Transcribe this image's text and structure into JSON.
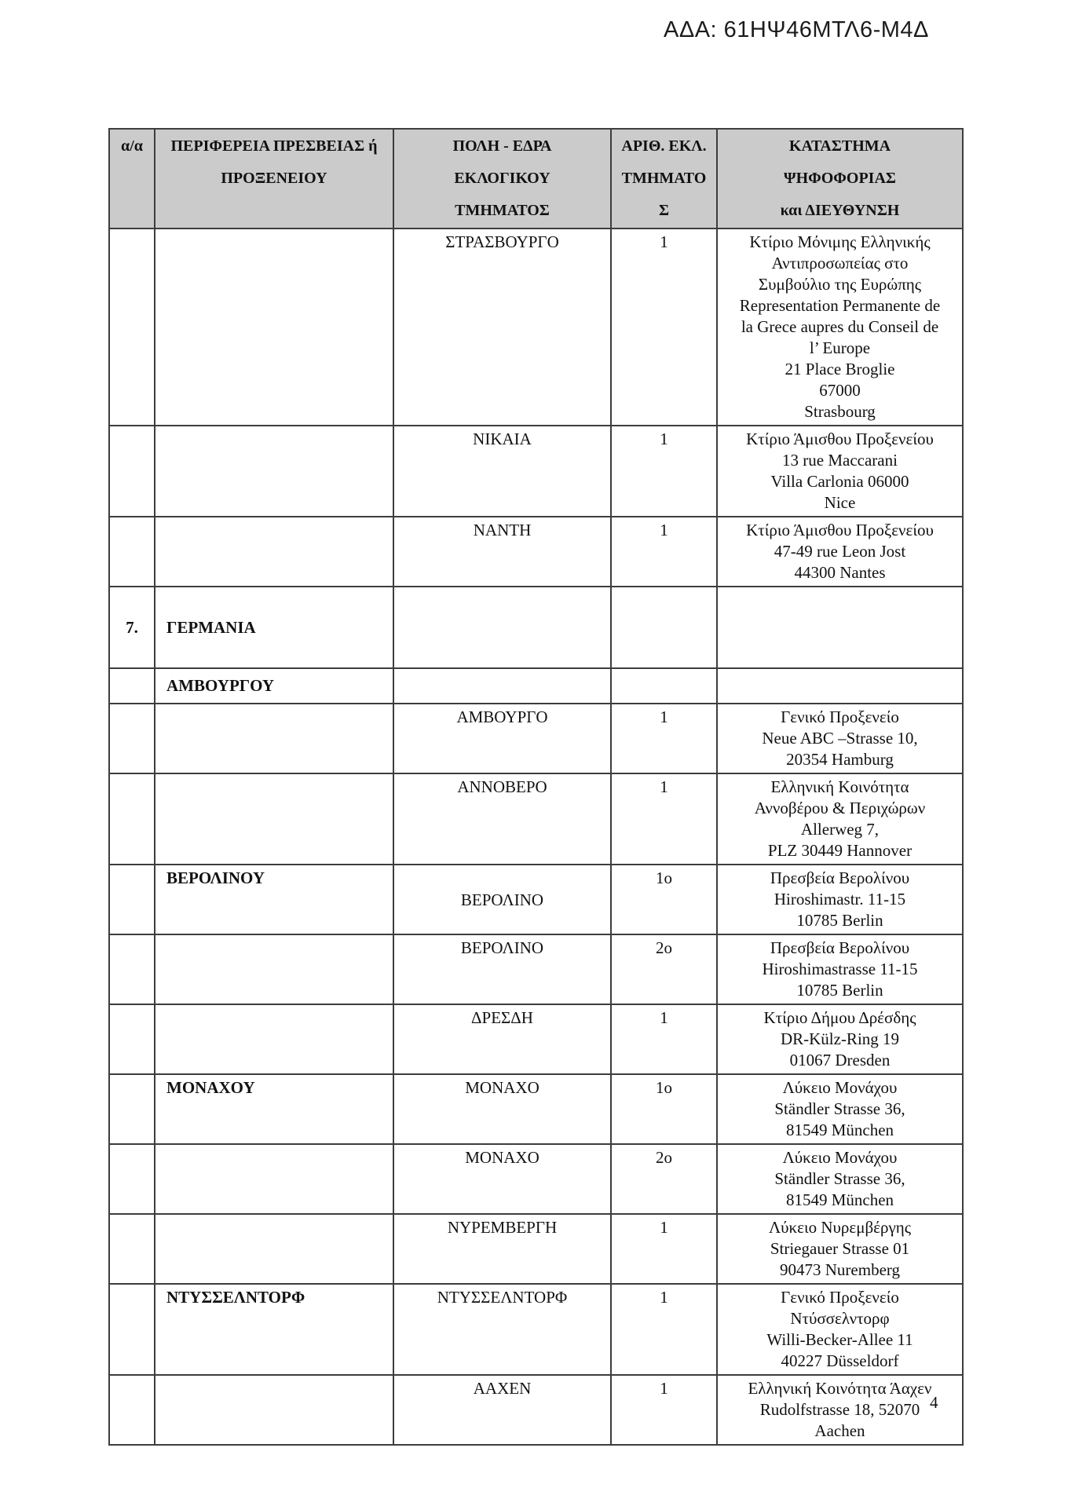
{
  "page": {
    "ada_code": "ΑΔΑ: 61ΗΨ46ΜΤΛ6-Μ4Δ",
    "page_number": "4"
  },
  "table": {
    "headers": {
      "index": [
        "α/α"
      ],
      "region": [
        "ΠΕΡΙΦΕΡΕΙΑ ΠΡΕΣΒΕΙΑΣ ή",
        "ΠΡΟΞΕΝΕΙΟΥ"
      ],
      "city": [
        "ΠΟΛΗ - ΕΔΡΑ",
        "ΕΚΛΟΓΙΚΟΥ",
        "ΤΜΗΜΑΤΟΣ"
      ],
      "number": [
        "ΑΡΙΘ. ΕΚΛ.",
        "ΤΜΗΜΑΤΟ",
        "Σ"
      ],
      "station": [
        "ΚΑΤΑΣΤΗΜΑ",
        "ΨΗΦΟΦΟΡΙΑΣ",
        "και ΔΙΕΥΘΥΝΣΗ"
      ]
    },
    "rows": [
      {
        "kind": "station",
        "index": "",
        "region": "",
        "city": "ΣΤΡΑΣΒΟΥΡΓΟ",
        "number": "1",
        "address": [
          "Κτίριο Μόνιμης Ελληνικής",
          "Αντιπροσωπείας στο",
          "Συμβούλιο της Ευρώπης",
          "Representation Permanente de",
          "la Grece aupres du Conseil de",
          "l’ Europe",
          "21 Place Broglie",
          "67000",
          "Strasbourg"
        ]
      },
      {
        "kind": "station",
        "index": "",
        "region": "",
        "city": "ΝΙΚΑΙΑ",
        "number": "1",
        "address": [
          "Κτίριο Άμισθου Προξενείου",
          "13 rue Maccarani",
          "Villa Carlonia 06000",
          "Nice"
        ]
      },
      {
        "kind": "station",
        "index": "",
        "region": "",
        "city": "ΝΑΝΤΗ",
        "number": "1",
        "address": [
          "Κτίριο Άμισθου Προξενείου",
          "47-49 rue Leon Jost",
          "44300 Nantes"
        ]
      },
      {
        "kind": "section",
        "index": "7.",
        "region": "ΓΕΡΜΑΝΙΑ",
        "city": "",
        "number": "",
        "address": []
      },
      {
        "kind": "subregion",
        "index": "",
        "region": "ΑΜΒΟΥΡΓΟΥ",
        "city": "",
        "number": "",
        "address": []
      },
      {
        "kind": "station",
        "index": "",
        "region": "",
        "city": "ΑΜΒΟΥΡΓΟ",
        "number": "1",
        "address": [
          "Γενικό Προξενείο",
          "Neue ABC –Strasse 10,",
          "20354 Hamburg"
        ]
      },
      {
        "kind": "station",
        "index": "",
        "region": "",
        "city": "ΑΝΝΟΒΕΡΟ",
        "number": "1",
        "address": [
          "Ελληνική Κοινότητα",
          "Αννοβέρου & Περιχώρων",
          "Allerweg 7,",
          "PLZ 30449 Hannover"
        ]
      },
      {
        "kind": "station",
        "index": "",
        "region": "ΒΕΡΟΛΙΝΟΥ",
        "city": "ΒΕΡΟΛΙΝΟ",
        "city_second_line": true,
        "number": "1ο",
        "address": [
          "Πρεσβεία Βερολίνου",
          "Hiroshimastr. 11-15",
          "10785 Berlin"
        ]
      },
      {
        "kind": "station",
        "index": "",
        "region": "",
        "city": "ΒΕΡΟΛΙΝΟ",
        "number": "2ο",
        "address": [
          "Πρεσβεία Βερολίνου",
          "Hiroshimastrasse 11-15",
          "10785 Berlin"
        ]
      },
      {
        "kind": "station",
        "index": "",
        "region": "",
        "city": "ΔΡΕΣΔΗ",
        "number": "1",
        "address": [
          "Κτίριο Δήμου Δρέσδης",
          "DR-Külz-Ring 19",
          "01067 Dresden"
        ]
      },
      {
        "kind": "station",
        "index": "",
        "region": "ΜΟΝΑΧΟΥ",
        "city": "ΜΟΝΑΧΟ",
        "number": "1ο",
        "address": [
          "Λύκειο Μονάχου",
          "Ständler Strasse 36,",
          "81549 München"
        ]
      },
      {
        "kind": "station",
        "index": "",
        "region": "",
        "city": "ΜΟΝΑΧΟ",
        "number": "2ο",
        "address": [
          "Λύκειο Μονάχου",
          "Ständler Strasse 36,",
          "81549 München"
        ]
      },
      {
        "kind": "station",
        "index": "",
        "region": "",
        "city": "ΝΥΡΕΜΒΕΡΓΗ",
        "number": "1",
        "address": [
          "Λύκειο Νυρεμβέργης",
          "Striegauer Strasse 01",
          "90473 Nuremberg"
        ]
      },
      {
        "kind": "station",
        "index": "",
        "region": "ΝΤΥΣΣΕΛΝΤΟΡΦ",
        "city": "ΝΤΥΣΣΕΛΝΤΟΡΦ",
        "number": "1",
        "address": [
          "Γενικό Προξενείο",
          "Ντύσσελντορφ",
          "Willi-Becker-Allee 11",
          "40227 Düsseldorf"
        ]
      },
      {
        "kind": "station",
        "index": "",
        "region": "",
        "city": "ΑΑΧΕΝ",
        "number": "1",
        "address": [
          "Ελληνική Κοινότητα Άαχεν",
          "Rudolfstrasse 18, 52070",
          "Aachen"
        ]
      }
    ]
  }
}
